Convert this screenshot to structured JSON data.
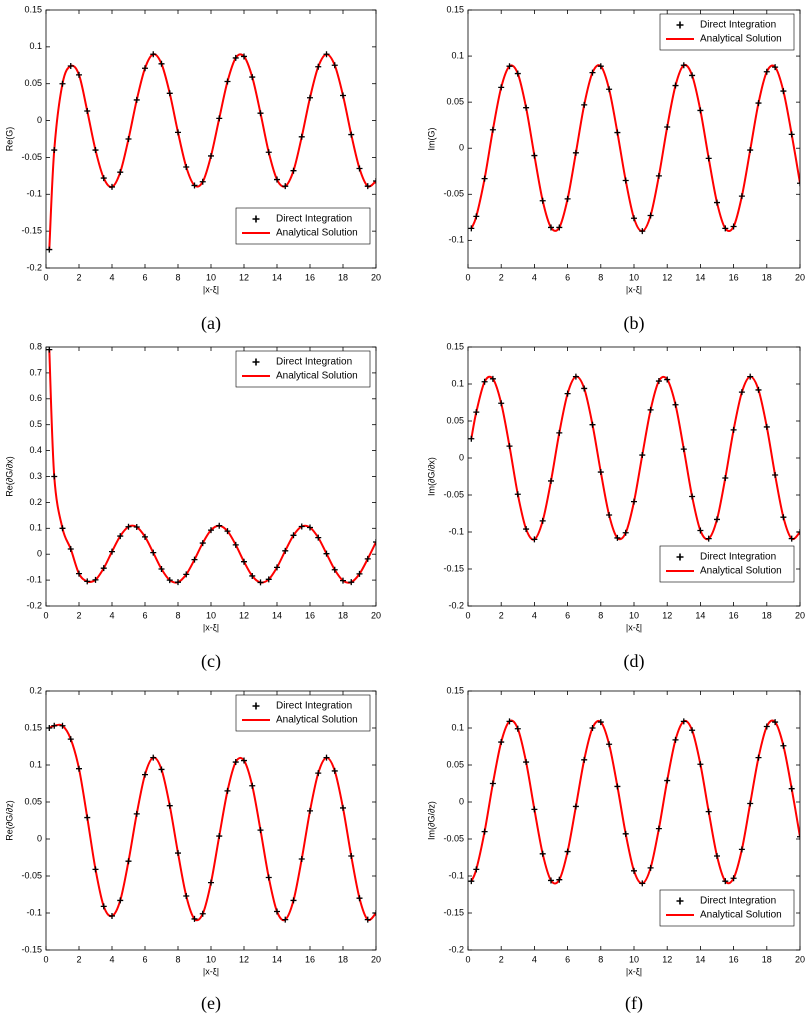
{
  "chart_data": [
    {
      "type": "line",
      "caption": "(a)",
      "x_label": "|x-ξ|",
      "y_label": "Re(G)",
      "legend": "lower right",
      "xlim": [
        0,
        20
      ],
      "xticks": [
        0,
        2,
        4,
        6,
        8,
        10,
        12,
        14,
        16,
        18,
        20
      ],
      "ylim": [
        -0.2,
        0.15
      ],
      "yticks": [
        -0.2,
        -0.15,
        -0.1,
        -0.05,
        0,
        0.05,
        0.1,
        0.15
      ],
      "x": [
        0.2,
        0.5,
        1,
        1.5,
        2,
        2.5,
        3,
        3.5,
        4,
        4.5,
        5,
        5.5,
        6,
        6.5,
        7,
        7.5,
        8,
        8.5,
        9,
        9.5,
        10,
        10.5,
        11,
        11.5,
        12,
        12.5,
        13,
        13.5,
        14,
        14.5,
        15,
        15.5,
        16,
        16.5,
        17,
        17.5,
        18,
        18.5,
        19,
        19.5,
        20
      ],
      "series": [
        {
          "name": "Direct Integration",
          "color": "#000000",
          "style": "markers",
          "values": [
            -0.175,
            -0.04,
            0.05,
            0.074,
            0.062,
            0.013,
            -0.04,
            -0.078,
            -0.09,
            -0.07,
            -0.025,
            0.028,
            0.071,
            0.09,
            0.077,
            0.037,
            -0.016,
            -0.063,
            -0.088,
            -0.083,
            -0.048,
            0.003,
            0.053,
            0.085,
            0.087,
            0.059,
            0.01,
            -0.043,
            -0.08,
            -0.089,
            -0.068,
            -0.022,
            0.031,
            0.073,
            0.09,
            0.075,
            0.034,
            -0.019,
            -0.065,
            -0.089,
            -0.082
          ]
        },
        {
          "name": "Analytical Solution",
          "color": "#ff0000",
          "style": "line",
          "values": [
            -0.175,
            -0.04,
            0.05,
            0.074,
            0.062,
            0.013,
            -0.04,
            -0.078,
            -0.09,
            -0.07,
            -0.025,
            0.028,
            0.071,
            0.09,
            0.077,
            0.037,
            -0.016,
            -0.063,
            -0.088,
            -0.083,
            -0.048,
            0.003,
            0.053,
            0.085,
            0.087,
            0.059,
            0.01,
            -0.043,
            -0.08,
            -0.089,
            -0.068,
            -0.022,
            0.031,
            0.073,
            0.09,
            0.075,
            0.034,
            -0.019,
            -0.065,
            -0.089,
            -0.082
          ]
        }
      ]
    },
    {
      "type": "line",
      "caption": "(b)",
      "x_label": "|x-ξ|",
      "y_label": "Im(G)",
      "legend": "upper right",
      "xlim": [
        0,
        20
      ],
      "xticks": [
        0,
        2,
        4,
        6,
        8,
        10,
        12,
        14,
        16,
        18,
        20
      ],
      "ylim": [
        -0.13,
        0.15
      ],
      "yticks": [
        -0.1,
        -0.05,
        0,
        0.05,
        0.1,
        0.15
      ],
      "x": [
        0.2,
        0.5,
        1,
        1.5,
        2,
        2.5,
        3,
        3.5,
        4,
        4.5,
        5,
        5.5,
        6,
        6.5,
        7,
        7.5,
        8,
        8.5,
        9,
        9.5,
        10,
        10.5,
        11,
        11.5,
        12,
        12.5,
        13,
        13.5,
        14,
        14.5,
        15,
        15.5,
        16,
        16.5,
        17,
        17.5,
        18,
        18.5,
        19,
        19.5,
        20
      ],
      "series": [
        {
          "name": "Direct Integration",
          "color": "#000000",
          "style": "markers",
          "values": [
            -0.087,
            -0.074,
            -0.033,
            0.02,
            0.066,
            0.089,
            0.081,
            0.044,
            -0.008,
            -0.057,
            -0.086,
            -0.086,
            -0.055,
            -0.005,
            0.047,
            0.082,
            0.089,
            0.064,
            0.017,
            -0.035,
            -0.076,
            -0.09,
            -0.073,
            -0.03,
            0.023,
            0.068,
            0.09,
            0.079,
            0.041,
            -0.011,
            -0.059,
            -0.087,
            -0.085,
            -0.052,
            -0.002,
            0.049,
            0.083,
            0.088,
            0.062,
            0.015,
            -0.038
          ]
        },
        {
          "name": "Analytical Solution",
          "color": "#ff0000",
          "style": "line",
          "values": [
            -0.087,
            -0.074,
            -0.033,
            0.02,
            0.066,
            0.089,
            0.081,
            0.044,
            -0.008,
            -0.057,
            -0.086,
            -0.086,
            -0.055,
            -0.005,
            0.047,
            0.082,
            0.089,
            0.064,
            0.017,
            -0.035,
            -0.076,
            -0.09,
            -0.073,
            -0.03,
            0.023,
            0.068,
            0.09,
            0.079,
            0.041,
            -0.011,
            -0.059,
            -0.087,
            -0.085,
            -0.052,
            -0.002,
            0.049,
            0.083,
            0.088,
            0.062,
            0.015,
            -0.038
          ]
        }
      ]
    },
    {
      "type": "line",
      "caption": "(c)",
      "x_label": "|x-ξ|",
      "y_label": "Re(∂G/∂x)",
      "legend": "upper right",
      "xlim": [
        0,
        20
      ],
      "xticks": [
        0,
        2,
        4,
        6,
        8,
        10,
        12,
        14,
        16,
        18,
        20
      ],
      "ylim": [
        -0.2,
        0.8
      ],
      "yticks": [
        -0.2,
        -0.1,
        0,
        0.1,
        0.2,
        0.3,
        0.4,
        0.5,
        0.6,
        0.7,
        0.8
      ],
      "x": [
        0.2,
        0.5,
        1,
        1.5,
        2,
        2.5,
        3,
        3.5,
        4,
        4.5,
        5,
        5.5,
        6,
        6.5,
        7,
        7.5,
        8,
        8.5,
        9,
        9.5,
        10,
        10.5,
        11,
        11.5,
        12,
        12.5,
        13,
        13.5,
        14,
        14.5,
        15,
        15.5,
        16,
        16.5,
        17,
        17.5,
        18,
        18.5,
        19,
        19.5,
        20
      ],
      "series": [
        {
          "name": "Direct Integration",
          "color": "#000000",
          "style": "markers",
          "values": [
            0.79,
            0.3,
            0.1,
            0.02,
            -0.075,
            -0.105,
            -0.099,
            -0.054,
            0.01,
            0.07,
            0.106,
            0.105,
            0.067,
            0.006,
            -0.057,
            -0.1,
            -0.108,
            -0.078,
            -0.021,
            0.043,
            0.093,
            0.11,
            0.089,
            0.036,
            -0.029,
            -0.084,
            -0.109,
            -0.097,
            -0.051,
            0.013,
            0.073,
            0.107,
            0.103,
            0.064,
            0.002,
            -0.06,
            -0.102,
            -0.108,
            -0.076,
            -0.018,
            0.047
          ]
        },
        {
          "name": "Analytical Solution",
          "color": "#ff0000",
          "style": "line",
          "values": [
            0.79,
            0.3,
            0.1,
            0.02,
            -0.075,
            -0.105,
            -0.099,
            -0.054,
            0.01,
            0.07,
            0.106,
            0.105,
            0.067,
            0.006,
            -0.057,
            -0.1,
            -0.108,
            -0.078,
            -0.021,
            0.043,
            0.093,
            0.11,
            0.089,
            0.036,
            -0.029,
            -0.084,
            -0.109,
            -0.097,
            -0.051,
            0.013,
            0.073,
            0.107,
            0.103,
            0.064,
            0.002,
            -0.06,
            -0.102,
            -0.108,
            -0.076,
            -0.018,
            0.047
          ]
        }
      ]
    },
    {
      "type": "line",
      "caption": "(d)",
      "x_label": "|x-ξ|",
      "y_label": "Im(∂G/∂x)",
      "legend": "lower right",
      "xlim": [
        0,
        20
      ],
      "xticks": [
        0,
        2,
        4,
        6,
        8,
        10,
        12,
        14,
        16,
        18,
        20
      ],
      "ylim": [
        -0.2,
        0.15
      ],
      "yticks": [
        -0.2,
        -0.15,
        -0.1,
        -0.05,
        0,
        0.05,
        0.1,
        0.15
      ],
      "x": [
        0.2,
        0.5,
        1,
        1.5,
        2,
        2.5,
        3,
        3.5,
        4,
        4.5,
        5,
        5.5,
        6,
        6.5,
        7,
        7.5,
        8,
        8.5,
        9,
        9.5,
        10,
        10.5,
        11,
        11.5,
        12,
        12.5,
        13,
        13.5,
        14,
        14.5,
        15,
        15.5,
        16,
        16.5,
        17,
        17.5,
        18,
        18.5,
        19,
        19.5,
        20
      ],
      "series": [
        {
          "name": "Direct Integration",
          "color": "#000000",
          "style": "markers",
          "values": [
            0.026,
            0.062,
            0.103,
            0.107,
            0.074,
            0.016,
            -0.049,
            -0.096,
            -0.11,
            -0.085,
            -0.031,
            0.034,
            0.087,
            0.11,
            0.094,
            0.045,
            -0.019,
            -0.077,
            -0.108,
            -0.101,
            -0.059,
            0.004,
            0.065,
            0.104,
            0.106,
            0.072,
            0.012,
            -0.052,
            -0.098,
            -0.109,
            -0.083,
            -0.027,
            0.038,
            0.089,
            0.11,
            0.092,
            0.042,
            -0.023,
            -0.08,
            -0.109,
            -0.1
          ]
        },
        {
          "name": "Analytical Solution",
          "color": "#ff0000",
          "style": "line",
          "values": [
            0.026,
            0.062,
            0.103,
            0.107,
            0.074,
            0.016,
            -0.049,
            -0.096,
            -0.11,
            -0.085,
            -0.031,
            0.034,
            0.087,
            0.11,
            0.094,
            0.045,
            -0.019,
            -0.077,
            -0.108,
            -0.101,
            -0.059,
            0.004,
            0.065,
            0.104,
            0.106,
            0.072,
            0.012,
            -0.052,
            -0.098,
            -0.109,
            -0.083,
            -0.027,
            0.038,
            0.089,
            0.11,
            0.092,
            0.042,
            -0.023,
            -0.08,
            -0.109,
            -0.1
          ]
        }
      ]
    },
    {
      "type": "line",
      "caption": "(e)",
      "x_label": "|x-ξ|",
      "y_label": "Re(∂G/∂z)",
      "legend": "upper right",
      "xlim": [
        0,
        20
      ],
      "xticks": [
        0,
        2,
        4,
        6,
        8,
        10,
        12,
        14,
        16,
        18,
        20
      ],
      "ylim": [
        -0.15,
        0.2
      ],
      "yticks": [
        -0.15,
        -0.1,
        -0.05,
        0,
        0.05,
        0.1,
        0.15,
        0.2
      ],
      "x": [
        0.2,
        0.5,
        1,
        1.5,
        2,
        2.5,
        3,
        3.5,
        4,
        4.5,
        5,
        5.5,
        6,
        6.5,
        7,
        7.5,
        8,
        8.5,
        9,
        9.5,
        10,
        10.5,
        11,
        11.5,
        12,
        12.5,
        13,
        13.5,
        14,
        14.5,
        15,
        15.5,
        16,
        16.5,
        17,
        17.5,
        18,
        18.5,
        19,
        19.5,
        20
      ],
      "series": [
        {
          "name": "Direct Integration",
          "color": "#000000",
          "style": "markers",
          "values": [
            0.15,
            0.153,
            0.153,
            0.135,
            0.095,
            0.029,
            -0.041,
            -0.091,
            -0.104,
            -0.083,
            -0.03,
            0.034,
            0.087,
            0.11,
            0.094,
            0.045,
            -0.019,
            -0.077,
            -0.108,
            -0.101,
            -0.059,
            0.004,
            0.065,
            0.104,
            0.106,
            0.072,
            0.012,
            -0.052,
            -0.098,
            -0.109,
            -0.083,
            -0.027,
            0.038,
            0.089,
            0.11,
            0.092,
            0.042,
            -0.023,
            -0.08,
            -0.109,
            -0.1
          ]
        },
        {
          "name": "Analytical Solution",
          "color": "#ff0000",
          "style": "line",
          "values": [
            0.15,
            0.153,
            0.153,
            0.135,
            0.095,
            0.029,
            -0.041,
            -0.091,
            -0.104,
            -0.083,
            -0.03,
            0.034,
            0.087,
            0.11,
            0.094,
            0.045,
            -0.019,
            -0.077,
            -0.108,
            -0.101,
            -0.059,
            0.004,
            0.065,
            0.104,
            0.106,
            0.072,
            0.012,
            -0.052,
            -0.098,
            -0.109,
            -0.083,
            -0.027,
            0.038,
            0.089,
            0.11,
            0.092,
            0.042,
            -0.023,
            -0.08,
            -0.109,
            -0.1
          ]
        }
      ]
    },
    {
      "type": "line",
      "caption": "(f)",
      "x_label": "|x-ξ|",
      "y_label": "Im(∂G/∂z)",
      "legend": "lower right",
      "xlim": [
        0,
        20
      ],
      "xticks": [
        0,
        2,
        4,
        6,
        8,
        10,
        12,
        14,
        16,
        18,
        20
      ],
      "ylim": [
        -0.2,
        0.15
      ],
      "yticks": [
        -0.2,
        -0.15,
        -0.1,
        -0.05,
        0,
        0.05,
        0.1,
        0.15
      ],
      "x": [
        0.2,
        0.5,
        1,
        1.5,
        2,
        2.5,
        3,
        3.5,
        4,
        4.5,
        5,
        5.5,
        6,
        6.5,
        7,
        7.5,
        8,
        8.5,
        9,
        9.5,
        10,
        10.5,
        11,
        11.5,
        12,
        12.5,
        13,
        13.5,
        14,
        14.5,
        15,
        15.5,
        16,
        16.5,
        17,
        17.5,
        18,
        18.5,
        19,
        19.5,
        20
      ],
      "series": [
        {
          "name": "Direct Integration",
          "color": "#000000",
          "style": "markers",
          "values": [
            -0.107,
            -0.091,
            -0.04,
            0.025,
            0.081,
            0.109,
            0.099,
            0.054,
            -0.01,
            -0.07,
            -0.106,
            -0.105,
            -0.067,
            -0.006,
            0.057,
            0.1,
            0.108,
            0.078,
            0.021,
            -0.043,
            -0.093,
            -0.11,
            -0.089,
            -0.036,
            0.029,
            0.084,
            0.109,
            0.097,
            0.051,
            -0.013,
            -0.073,
            -0.107,
            -0.103,
            -0.064,
            -0.002,
            0.06,
            0.102,
            0.108,
            0.076,
            0.018,
            -0.047
          ]
        },
        {
          "name": "Analytical Solution",
          "color": "#ff0000",
          "style": "line",
          "values": [
            -0.107,
            -0.091,
            -0.04,
            0.025,
            0.081,
            0.109,
            0.099,
            0.054,
            -0.01,
            -0.07,
            -0.106,
            -0.105,
            -0.067,
            -0.006,
            0.057,
            0.1,
            0.108,
            0.078,
            0.021,
            -0.043,
            -0.093,
            -0.11,
            -0.089,
            -0.036,
            0.029,
            0.084,
            0.109,
            0.097,
            0.051,
            -0.013,
            -0.073,
            -0.107,
            -0.103,
            -0.064,
            -0.002,
            0.06,
            0.102,
            0.108,
            0.076,
            0.018,
            -0.047
          ]
        }
      ]
    }
  ]
}
